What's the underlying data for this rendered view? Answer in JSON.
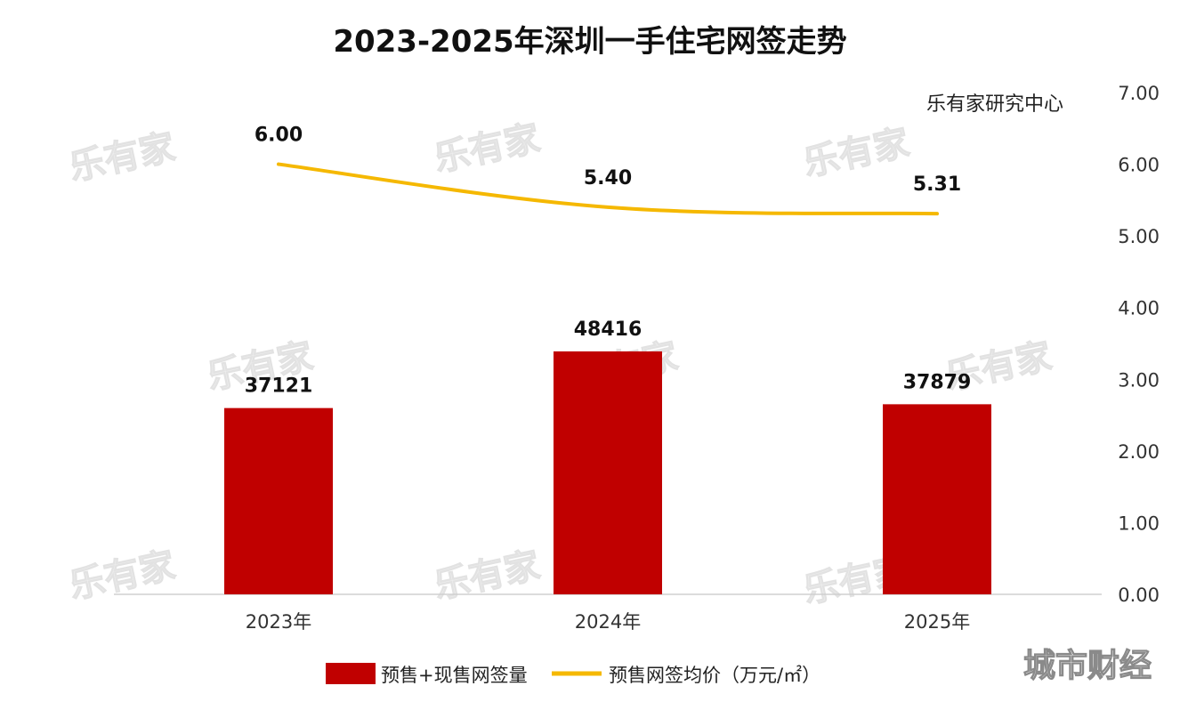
{
  "chart_data": {
    "title": "2023-2025年深圳一手住宅网签走势",
    "source": "乐有家研究中心",
    "type": "bar",
    "categories": [
      "2023年",
      "2024年",
      "2025年"
    ],
    "series": [
      {
        "name": "预售+现售网签量",
        "type": "bar",
        "values": [
          37121,
          48416,
          37879
        ],
        "value_labels": [
          "37121",
          "48416",
          "37879"
        ],
        "color": "#c00000",
        "axis": "left-hidden",
        "ylim": [
          0,
          100000
        ]
      },
      {
        "name": "预售网签均价（万元/㎡）",
        "type": "line",
        "values": [
          6.0,
          5.4,
          5.31
        ],
        "value_labels": [
          "6.00",
          "5.40",
          "5.31"
        ],
        "color": "#f5b800",
        "axis": "right",
        "ylim": [
          0,
          7
        ]
      }
    ],
    "right_axis": {
      "ticks": [
        "0.00",
        "1.00",
        "2.00",
        "3.00",
        "4.00",
        "5.00",
        "6.00",
        "7.00"
      ],
      "ylim": [
        0,
        7
      ]
    },
    "legend_position": "bottom-center",
    "watermark_text": "乐有家",
    "corner_mark": "城市财经"
  }
}
